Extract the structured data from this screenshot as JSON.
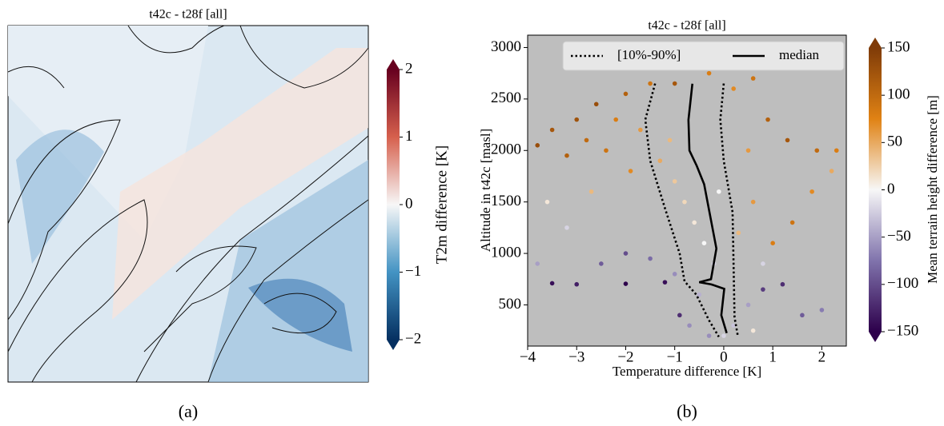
{
  "chart_data": [
    {
      "type": "map",
      "title": "t42c - t28f [all]",
      "caption": "(a)",
      "colorbar": {
        "label": "T2m difference [K]",
        "lim": [
          -2,
          2
        ],
        "ticks": [
          {
            "value": -2,
            "label": "−2"
          },
          {
            "value": -1,
            "label": "−1"
          },
          0,
          1,
          2
        ],
        "cmap": [
          "#053061",
          "#4393c3",
          "#f7f7f7",
          "#d6604d",
          "#67001f"
        ]
      }
    },
    {
      "type": "scatter",
      "title": "t42c - t28f [all]",
      "caption": "(b)",
      "x_label": "Temperature difference [K]",
      "y_label": "Altitude in t42c [masl]",
      "xlim": [
        -4,
        2.5
      ],
      "ylim": [
        100,
        3120
      ],
      "xticks": [
        {
          "value": -4,
          "label": "−4"
        },
        {
          "value": -3,
          "label": "−3"
        },
        {
          "value": -2,
          "label": "−2"
        },
        {
          "value": -1,
          "label": "−1"
        },
        0,
        1,
        2
      ],
      "yticks": [
        500,
        1000,
        1500,
        2000,
        2500,
        3000
      ],
      "background": "#bebebe",
      "legend": "top",
      "points": {
        "x": [
          -3.8,
          -3.5,
          -3.2,
          -3.0,
          -2.8,
          -2.6,
          -2.4,
          -2.2,
          -2.0,
          -1.9,
          -1.7,
          -1.5,
          -1.3,
          -1.1,
          -1.0,
          -0.8,
          -0.6,
          -0.4,
          -0.2,
          -0.5,
          -1.0,
          -1.5,
          -2.0,
          -2.5,
          -3.0,
          -3.5,
          -2.0,
          -1.2,
          -0.9,
          -0.7,
          0.2,
          0.5,
          0.8,
          1.2,
          1.6,
          2.0,
          0.3,
          0.6,
          1.0,
          1.4,
          1.8,
          2.2,
          0.5,
          0.9,
          1.3,
          1.9,
          2.3,
          0.2,
          0.6,
          -0.3,
          -1.0,
          -3.2,
          -3.6,
          -2.7,
          0.8,
          -0.1,
          0.0,
          -0.3,
          0.6,
          -3.8
        ],
        "y": [
          2050,
          2200,
          1950,
          2300,
          2100,
          2450,
          2000,
          2300,
          2550,
          1800,
          2200,
          2650,
          1900,
          2100,
          1700,
          1500,
          1300,
          1100,
          900,
          600,
          800,
          950,
          1000,
          900,
          700,
          710,
          705,
          720,
          400,
          300,
          300,
          500,
          650,
          700,
          400,
          450,
          1200,
          1500,
          1100,
          1300,
          1600,
          1800,
          2000,
          2300,
          2100,
          2000,
          2000,
          2600,
          2700,
          2750,
          2650,
          1250,
          1500,
          1600,
          900,
          1600,
          200,
          200,
          250,
          900
        ],
        "c": [
          130,
          120,
          110,
          125,
          100,
          130,
          90,
          80,
          110,
          70,
          60,
          90,
          50,
          40,
          30,
          20,
          10,
          0,
          -20,
          -40,
          -60,
          -80,
          -100,
          -90,
          -130,
          -140,
          -150,
          -140,
          -120,
          -60,
          -30,
          -50,
          -110,
          -120,
          -90,
          -70,
          40,
          60,
          80,
          90,
          70,
          50,
          60,
          110,
          120,
          100,
          80,
          70,
          90,
          80,
          120,
          -20,
          10,
          40,
          -20,
          0,
          -20,
          -60,
          10,
          -50
        ]
      },
      "series": [
        {
          "name": "[10%-90%]",
          "style": "dotted",
          "color": "#000000",
          "lower": {
            "x": [
              -1.4,
              -1.6,
              -1.5,
              -1.2,
              -0.9,
              -0.8,
              -0.56,
              -0.3,
              -0.1
            ],
            "y": [
              2650,
              2300,
              1900,
              1440,
              1000,
              730,
              600,
              350,
              190
            ]
          },
          "upper": {
            "x": [
              0.0,
              -0.07,
              0.0,
              0.18,
              0.2,
              0.22,
              0.29
            ],
            "y": [
              2650,
              2300,
              1900,
              1400,
              900,
              380,
              190
            ]
          }
        },
        {
          "name": "median",
          "style": "solid",
          "color": "#000000",
          "x": [
            -0.64,
            -0.72,
            -0.7,
            -0.55,
            -0.4,
            -0.15,
            -0.26,
            -0.5,
            -0.26,
            0.01,
            -0.05,
            0.06
          ],
          "y": [
            2648,
            2297,
            2000,
            1850,
            1672,
            1047,
            750,
            720,
            700,
            656,
            400,
            226
          ]
        }
      ],
      "colorbar": {
        "label": "Mean terrain height difference [m]",
        "lim": [
          -150,
          150
        ],
        "ticks": [
          {
            "value": -150,
            "label": "−150"
          },
          {
            "value": -100,
            "label": "−100"
          },
          {
            "value": -50,
            "label": "−50"
          },
          0,
          50,
          100,
          150
        ],
        "cmap": [
          "#2d004b",
          "#8073ac",
          "#f7f7f7",
          "#e08214",
          "#7f3b08"
        ]
      }
    }
  ]
}
